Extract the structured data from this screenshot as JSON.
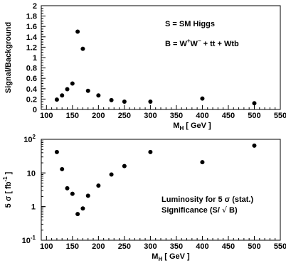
{
  "chart_data": [
    {
      "type": "scatter",
      "xlim": [
        90,
        550
      ],
      "ylim": [
        0,
        2
      ],
      "y_scale": "linear",
      "xlabel_main": "M",
      "xlabel_sub": "H",
      "xlabel_rest": " [ GeV ]",
      "ylabel": "Signal/Background",
      "x_ticks": [
        100,
        150,
        200,
        250,
        300,
        350,
        400,
        450,
        500,
        550
      ],
      "y_ticks": [
        {
          "value": 0,
          "label": "0"
        },
        {
          "value": 0.2,
          "label": "0.2"
        },
        {
          "value": 0.4,
          "label": "0.4"
        },
        {
          "value": 0.6,
          "label": "0.6"
        },
        {
          "value": 0.8,
          "label": "0.8"
        },
        {
          "value": 1,
          "label": "1"
        },
        {
          "value": 1.2,
          "label": "1.2"
        },
        {
          "value": 1.4,
          "label": "1.4"
        },
        {
          "value": 1.6,
          "label": "1.6"
        },
        {
          "value": 1.8,
          "label": "1.8"
        },
        {
          "value": 2,
          "label": "2"
        }
      ],
      "annotation_1": "S = SM Higgs",
      "annotation_2_prefix": "B = W",
      "annotation_2_mid": "W",
      "annotation_2_suffix": " + tt + Wtb",
      "x": [
        120,
        130,
        140,
        150,
        160,
        170,
        180,
        200,
        225,
        250,
        300,
        400,
        500
      ],
      "y": [
        0.19,
        0.27,
        0.39,
        0.5,
        1.5,
        1.17,
        0.36,
        0.27,
        0.18,
        0.15,
        0.15,
        0.21,
        0.12
      ]
    },
    {
      "type": "scatter",
      "xlim": [
        90,
        550
      ],
      "ylim": [
        0.1,
        100
      ],
      "y_scale": "log",
      "xlabel_main": "M",
      "xlabel_sub": "H",
      "xlabel_rest": " [ GeV ]",
      "ylabel_prefix": "5 σ [ fb",
      "ylabel_sup": "-1",
      "ylabel_suffix": " ]",
      "x_ticks": [
        100,
        150,
        200,
        250,
        300,
        350,
        400,
        450,
        500,
        550
      ],
      "y_ticks": [
        {
          "value": 100,
          "base": "10",
          "exp": "2"
        },
        {
          "value": 10,
          "base": "10",
          "exp": ""
        },
        {
          "value": 1,
          "base": "1",
          "exp": ""
        },
        {
          "value": 0.1,
          "base": "10",
          "exp": "-1"
        }
      ],
      "annotation_1": "Luminosity for 5 σ (stat.)",
      "annotation_2_prefix": "Significance (S/ ",
      "annotation_2_root": "√",
      "annotation_2_suffix": " B)",
      "x": [
        120,
        130,
        140,
        150,
        160,
        170,
        180,
        200,
        225,
        250,
        300,
        400,
        500
      ],
      "y": [
        42,
        13,
        3.5,
        2.4,
        0.6,
        0.88,
        2.1,
        4.2,
        9,
        16,
        42,
        21,
        65
      ]
    }
  ]
}
